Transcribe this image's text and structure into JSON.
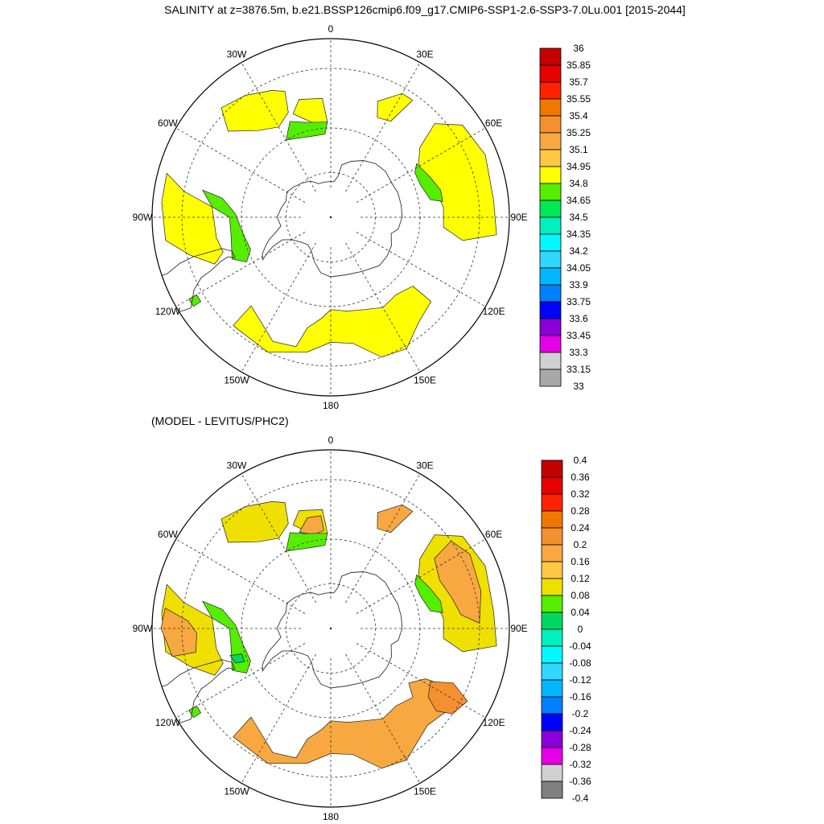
{
  "title": "SALINITY at z=3876.5m, b.e21.BSSP126cmip6.f09_g17.CMIP6-SSP1-2.6-SSP3-7.0Lu.001 [2015-2044]",
  "lon_labels": [
    "0",
    "30E",
    "60E",
    "90E",
    "120E",
    "150E",
    "180",
    "150W",
    "120W",
    "90W",
    "60W",
    "30W"
  ],
  "panels": [
    {
      "id": "top",
      "label": "",
      "colorbar": {
        "labels": [
          "36",
          "35.85",
          "35.7",
          "35.55",
          "35.4",
          "35.25",
          "35.1",
          "34.95",
          "34.8",
          "34.65",
          "34.5",
          "34.35",
          "34.2",
          "34.05",
          "33.9",
          "33.75",
          "33.6",
          "33.45",
          "33.3",
          "33.15",
          "33"
        ],
        "colors": [
          "#c40000",
          "#e60000",
          "#ff2200",
          "#f07800",
          "#f59030",
          "#f8a840",
          "#ffc844",
          "#ffff00",
          "#56ee00",
          "#00e855",
          "#00f0c0",
          "#00f8ff",
          "#30d8ff",
          "#00b8ff",
          "#0080ff",
          "#0000ff",
          "#8a00d8",
          "#e600e6",
          "#d0d0d0",
          "#a8a8a8"
        ]
      },
      "regions": [
        {
          "color": "#ffff00",
          "pts": [
            [
              -42,
              -50
            ],
            [
              -25,
              -44
            ],
            [
              -15,
              -45
            ],
            [
              -12,
              -52
            ],
            [
              -5,
              -56
            ],
            [
              0,
              -59
            ],
            [
              10,
              -58
            ],
            [
              20,
              -57
            ],
            [
              30,
              -55
            ],
            [
              40,
              -56
            ],
            [
              50,
              -54
            ],
            [
              50,
              -46
            ],
            [
              40,
              -44
            ],
            [
              30,
              -39
            ],
            [
              20,
              -40
            ],
            [
              10,
              -47
            ],
            [
              0,
              -48
            ],
            [
              -10,
              -44
            ],
            [
              -25,
              -40
            ],
            [
              -42,
              -41
            ]
          ]
        },
        {
          "color": "#ffff00",
          "pts": [
            [
              -105,
              -33
            ],
            [
              -100,
              -40
            ],
            [
              -95,
              -50
            ],
            [
              -80,
              -51
            ],
            [
              -72,
              -52
            ],
            [
              -68,
              -48
            ],
            [
              -75,
              -41
            ],
            [
              -82,
              -34
            ],
            [
              -95,
              -33
            ]
          ]
        },
        {
          "color": "#ffff00",
          "pts": [
            [
              -160,
              -45
            ],
            [
              -155,
              -43
            ],
            [
              -145,
              -40
            ],
            [
              -135,
              -38
            ],
            [
              -130,
              -45
            ],
            [
              -140,
              -52
            ],
            [
              -150,
              -55
            ],
            [
              -158,
              -52
            ]
          ]
        },
        {
          "color": "#ffff00",
          "pts": [
            [
              -176,
              -50
            ],
            [
              -165,
              -49
            ],
            [
              -160,
              -53
            ],
            [
              -170,
              -58
            ],
            [
              -178,
              -58
            ]
          ]
        },
        {
          "color": "#ffff00",
          "pts": [
            [
              84,
              -34
            ],
            [
              80,
              -45
            ],
            [
              85,
              -52
            ],
            [
              95,
              -52
            ],
            [
              108,
              -54
            ],
            [
              120,
              -56
            ],
            [
              128,
              -52
            ],
            [
              132,
              -43
            ],
            [
              125,
              -36
            ],
            [
              112,
              -34
            ],
            [
              96,
              -35
            ]
          ]
        },
        {
          "color": "#ffff00",
          "pts": [
            [
              145,
              -42
            ],
            [
              150,
              -42
            ],
            [
              158,
              -48
            ],
            [
              155,
              -53
            ],
            [
              148,
              -52
            ]
          ]
        },
        {
          "color": "#56ee00",
          "pts": [
            [
              -95,
              -50
            ],
            [
              -90,
              -56
            ],
            [
              -80,
              -56
            ],
            [
              -67,
              -54
            ],
            [
              -62,
              -58
            ],
            [
              -68,
              -61
            ],
            [
              -80,
              -60
            ],
            [
              -92,
              -58
            ],
            [
              -100,
              -53
            ],
            [
              -102,
              -46
            ]
          ]
        },
        {
          "color": "#56ee00",
          "pts": [
            [
              -157,
              -55
            ],
            [
              -165,
              -57
            ],
            [
              -178,
              -58
            ],
            [
              -176,
              -62
            ],
            [
              -165,
              -62
            ],
            [
              -150,
              -60
            ]
          ]
        },
        {
          "color": "#56ee00",
          "pts": [
            [
              98,
              -52
            ],
            [
              100,
              -56
            ],
            [
              110,
              -58
            ],
            [
              118,
              -58
            ],
            [
              122,
              -56
            ],
            [
              112,
              -54
            ],
            [
              104,
              -52
            ]
          ]
        },
        {
          "color": "#56ee00",
          "pts": [
            [
              -60,
              -35
            ],
            [
              -57,
              -35
            ],
            [
              -57,
              -38
            ],
            [
              -60,
              -38
            ]
          ]
        }
      ]
    },
    {
      "id": "bottom",
      "label": "(MODEL - LEVITUS/PHC2)",
      "colorbar": {
        "labels": [
          "0.4",
          "0.36",
          "0.32",
          "0.28",
          "0.24",
          "0.2",
          "0.16",
          "0.12",
          "0.08",
          "0.04",
          "0",
          "-0.04",
          "-0.08",
          "-0.12",
          "-0.16",
          "-0.2",
          "-0.24",
          "-0.28",
          "-0.32",
          "-0.36",
          "-0.4"
        ],
        "colors": [
          "#c40000",
          "#e60000",
          "#ff2200",
          "#f07800",
          "#f59030",
          "#f8a840",
          "#ffc844",
          "#f0e000",
          "#56ee00",
          "#00d860",
          "#00f0c0",
          "#00f8ff",
          "#30d8ff",
          "#00b8ff",
          "#0080ff",
          "#0000ff",
          "#8a00d8",
          "#e600e6",
          "#d0d0d0",
          "#808080"
        ]
      },
      "regions": [
        {
          "color": "#f8a840",
          "pts": [
            [
              -42,
              -50
            ],
            [
              -25,
              -44
            ],
            [
              -15,
              -45
            ],
            [
              -12,
              -52
            ],
            [
              -5,
              -56
            ],
            [
              0,
              -59
            ],
            [
              10,
              -58
            ],
            [
              20,
              -57
            ],
            [
              30,
              -55
            ],
            [
              40,
              -56
            ],
            [
              50,
              -54
            ],
            [
              55,
              -58
            ],
            [
              62,
              -54
            ],
            [
              64,
              -44
            ],
            [
              55,
              -42
            ],
            [
              45,
              -44
            ],
            [
              30,
              -39
            ],
            [
              20,
              -40
            ],
            [
              10,
              -47
            ],
            [
              0,
              -48
            ],
            [
              -10,
              -44
            ],
            [
              -25,
              -40
            ],
            [
              -42,
              -41
            ]
          ]
        },
        {
          "color": "#f59030",
          "pts": [
            [
              52,
              -45
            ],
            [
              55,
              -40
            ],
            [
              62,
              -38
            ],
            [
              66,
              -45
            ],
            [
              62,
              -52
            ],
            [
              55,
              -50
            ]
          ]
        },
        {
          "color": "#f0e000",
          "pts": [
            [
              -105,
              -33
            ],
            [
              -100,
              -40
            ],
            [
              -95,
              -50
            ],
            [
              -80,
              -51
            ],
            [
              -72,
              -52
            ],
            [
              -68,
              -48
            ],
            [
              -75,
              -41
            ],
            [
              -82,
              -34
            ],
            [
              -95,
              -33
            ]
          ]
        },
        {
          "color": "#f8a840",
          "pts": [
            [
              -97,
              -34
            ],
            [
              -93,
              -42
            ],
            [
              -88,
              -45
            ],
            [
              -80,
              -44
            ],
            [
              -80,
              -36
            ],
            [
              -90,
              -33
            ]
          ]
        },
        {
          "color": "#f0e000",
          "pts": [
            [
              -160,
              -45
            ],
            [
              -155,
              -43
            ],
            [
              -145,
              -40
            ],
            [
              -135,
              -38
            ],
            [
              -130,
              -45
            ],
            [
              -140,
              -52
            ],
            [
              -150,
              -55
            ],
            [
              -158,
              -52
            ]
          ]
        },
        {
          "color": "#f0e000",
          "pts": [
            [
              -176,
              -50
            ],
            [
              -165,
              -49
            ],
            [
              -160,
              -53
            ],
            [
              -170,
              -58
            ],
            [
              -178,
              -58
            ]
          ]
        },
        {
          "color": "#f0e000",
          "pts": [
            [
              84,
              -34
            ],
            [
              80,
              -45
            ],
            [
              85,
              -52
            ],
            [
              95,
              -52
            ],
            [
              108,
              -54
            ],
            [
              120,
              -56
            ],
            [
              128,
              -52
            ],
            [
              132,
              -43
            ],
            [
              125,
              -36
            ],
            [
              112,
              -34
            ],
            [
              96,
              -35
            ]
          ]
        },
        {
          "color": "#f8a840",
          "pts": [
            [
              92,
              -40
            ],
            [
              96,
              -46
            ],
            [
              104,
              -48
            ],
            [
              114,
              -50
            ],
            [
              124,
              -48
            ],
            [
              126,
              -40
            ],
            [
              118,
              -37
            ],
            [
              104,
              -38
            ]
          ]
        },
        {
          "color": "#f8a840",
          "pts": [
            [
              145,
              -42
            ],
            [
              150,
              -42
            ],
            [
              158,
              -48
            ],
            [
              155,
              -53
            ],
            [
              148,
              -52
            ]
          ]
        },
        {
          "color": "#f8a840",
          "pts": [
            [
              -175,
              -52
            ],
            [
              -168,
              -52
            ],
            [
              -162,
              -56
            ],
            [
              -170,
              -58
            ],
            [
              -176,
              -57
            ]
          ]
        },
        {
          "color": "#56ee00",
          "pts": [
            [
              -95,
              -50
            ],
            [
              -90,
              -56
            ],
            [
              -80,
              -56
            ],
            [
              -67,
              -54
            ],
            [
              -62,
              -58
            ],
            [
              -68,
              -61
            ],
            [
              -80,
              -60
            ],
            [
              -92,
              -58
            ],
            [
              -100,
              -53
            ],
            [
              -102,
              -46
            ]
          ]
        },
        {
          "color": "#00d860",
          "pts": [
            [
              -75,
              -55
            ],
            [
              -70,
              -56
            ],
            [
              -69,
              -59
            ],
            [
              -74,
              -59
            ]
          ]
        },
        {
          "color": "#56ee00",
          "pts": [
            [
              -157,
              -55
            ],
            [
              -165,
              -57
            ],
            [
              -178,
              -58
            ],
            [
              -176,
              -62
            ],
            [
              -165,
              -62
            ],
            [
              -150,
              -60
            ]
          ]
        },
        {
          "color": "#56ee00",
          "pts": [
            [
              98,
              -52
            ],
            [
              100,
              -56
            ],
            [
              110,
              -58
            ],
            [
              118,
              -58
            ],
            [
              122,
              -56
            ],
            [
              112,
              -54
            ],
            [
              104,
              -52
            ]
          ]
        },
        {
          "color": "#56ee00",
          "pts": [
            [
              -60,
              -35
            ],
            [
              -57,
              -35
            ],
            [
              -57,
              -38
            ],
            [
              -60,
              -38
            ]
          ]
        }
      ]
    }
  ]
}
